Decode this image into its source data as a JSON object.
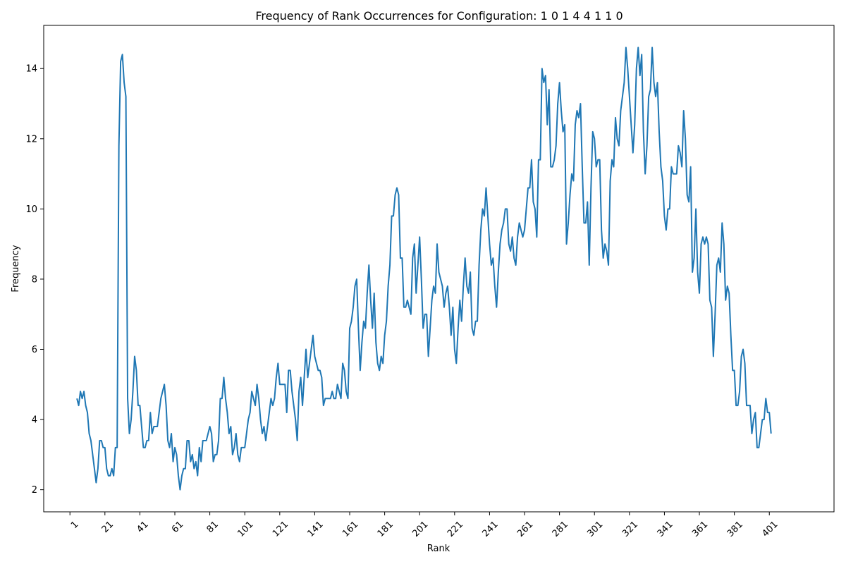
{
  "chart_data": {
    "type": "line",
    "title": "Frequency of Rank Occurrences for Configuration: 1 0 1 4 4 1 1 0",
    "xlabel": "Rank",
    "ylabel": "Frequency",
    "xlim": [
      -14,
      438
    ],
    "ylim": [
      1.37,
      15.23
    ],
    "x_ticks": [
      1,
      21,
      41,
      61,
      81,
      101,
      121,
      141,
      161,
      181,
      201,
      221,
      241,
      261,
      281,
      301,
      321,
      341,
      361,
      381,
      401
    ],
    "y_ticks": [
      2,
      4,
      6,
      8,
      10,
      12,
      14
    ],
    "grid": false,
    "legend": false,
    "color": "#1f77b4",
    "series": [
      {
        "x_start": 5,
        "values": [
          4.6,
          4.4,
          4.8,
          4.6,
          4.8,
          4.4,
          4.2,
          3.6,
          3.4,
          3.0,
          2.6,
          2.2,
          2.6,
          3.4,
          3.4,
          3.2,
          3.2,
          2.6,
          2.4,
          2.4,
          2.6,
          2.4,
          3.2,
          3.2,
          11.8,
          14.2,
          14.4,
          13.6,
          13.2,
          4.6,
          3.6,
          4.0,
          4.8,
          5.8,
          5.4,
          4.4,
          4.4,
          3.8,
          3.2,
          3.2,
          3.4,
          3.4,
          4.2,
          3.6,
          3.8,
          3.8,
          3.8,
          4.2,
          4.6,
          4.8,
          5.0,
          4.4,
          3.4,
          3.2,
          3.6,
          2.8,
          3.2,
          3.0,
          2.4,
          2.0,
          2.4,
          2.6,
          2.6,
          3.4,
          3.4,
          2.8,
          3.0,
          2.6,
          2.8,
          2.4,
          3.2,
          2.8,
          3.4,
          3.4,
          3.4,
          3.6,
          3.8,
          3.6,
          2.8,
          3.0,
          3.0,
          3.4,
          4.6,
          4.6,
          5.2,
          4.6,
          4.2,
          3.6,
          3.8,
          3.0,
          3.2,
          3.6,
          3.0,
          2.8,
          3.2,
          3.2,
          3.2,
          3.6,
          4.0,
          4.2,
          4.8,
          4.6,
          4.4,
          5.0,
          4.6,
          4.0,
          3.6,
          3.8,
          3.4,
          3.8,
          4.2,
          4.6,
          4.4,
          4.6,
          5.2,
          5.6,
          5.0,
          5.0,
          5.0,
          5.0,
          4.2,
          5.4,
          5.4,
          4.8,
          4.4,
          4.0,
          3.4,
          4.8,
          5.2,
          4.4,
          5.2,
          6.0,
          5.2,
          5.6,
          6.0,
          6.4,
          5.8,
          5.6,
          5.4,
          5.4,
          5.2,
          4.4,
          4.6,
          4.6,
          4.6,
          4.6,
          4.8,
          4.6,
          4.6,
          5.0,
          4.8,
          4.6,
          5.6,
          5.4,
          4.8,
          4.6,
          6.6,
          6.8,
          7.2,
          7.8,
          8.0,
          6.6,
          5.4,
          6.2,
          6.8,
          6.6,
          7.6,
          8.4,
          7.4,
          6.6,
          7.6,
          6.2,
          5.6,
          5.4,
          5.8,
          5.6,
          6.4,
          6.8,
          7.8,
          8.4,
          9.8,
          9.8,
          10.4,
          10.6,
          10.4,
          8.6,
          8.6,
          7.2,
          7.2,
          7.4,
          7.2,
          7.0,
          8.6,
          9.0,
          7.6,
          8.4,
          9.2,
          8.0,
          6.6,
          7.0,
          7.0,
          5.8,
          6.6,
          7.4,
          7.8,
          7.6,
          9.0,
          8.2,
          8.0,
          7.8,
          7.2,
          7.6,
          7.8,
          7.2,
          6.4,
          7.2,
          6.0,
          5.6,
          6.6,
          7.4,
          6.8,
          7.8,
          8.6,
          7.8,
          7.6,
          8.2,
          6.6,
          6.4,
          6.8,
          6.8,
          8.4,
          9.4,
          10.0,
          9.8,
          10.6,
          9.8,
          9.0,
          8.4,
          8.6,
          7.8,
          7.2,
          8.2,
          9.0,
          9.4,
          9.6,
          10.0,
          10.0,
          9.0,
          8.8,
          9.2,
          8.6,
          8.4,
          9.2,
          9.6,
          9.4,
          9.2,
          9.4,
          10.0,
          10.6,
          10.6,
          11.4,
          10.2,
          10.0,
          9.2,
          11.4,
          11.4,
          14.0,
          13.6,
          13.8,
          12.4,
          13.4,
          11.2,
          11.2,
          11.4,
          11.8,
          13.0,
          13.6,
          12.8,
          12.2,
          12.4,
          9.0,
          9.6,
          10.4,
          11.0,
          10.8,
          12.4,
          12.8,
          12.6,
          13.0,
          11.2,
          9.6,
          9.6,
          10.2,
          8.4,
          10.6,
          12.2,
          12.0,
          11.2,
          11.4,
          11.4,
          9.4,
          8.6,
          9.0,
          8.8,
          8.4,
          10.8,
          11.4,
          11.2,
          12.6,
          12.0,
          11.8,
          12.8,
          13.2,
          13.6,
          14.6,
          14.0,
          13.2,
          12.4,
          11.6,
          12.4,
          14.0,
          14.6,
          13.8,
          14.4,
          12.2,
          11.0,
          11.8,
          13.2,
          13.4,
          14.6,
          13.6,
          13.2,
          13.6,
          12.2,
          11.2,
          10.8,
          9.8,
          9.4,
          10.0,
          10.0,
          11.2,
          11.0,
          11.0,
          11.0,
          11.8,
          11.6,
          11.2,
          12.8,
          12.0,
          10.4,
          10.2,
          11.2,
          8.2,
          8.6,
          10.0,
          8.2,
          7.6,
          9.0,
          9.2,
          9.0,
          9.2,
          9.0,
          7.4,
          7.2,
          5.8,
          7.0,
          8.4,
          8.6,
          8.2,
          9.6,
          9.0,
          7.4,
          7.8,
          7.6,
          6.4,
          5.4,
          5.4,
          4.4,
          4.4,
          4.8,
          5.8,
          6.0,
          5.6,
          4.4,
          4.4,
          4.4,
          3.6,
          4.0,
          4.2,
          3.2,
          3.2,
          3.6,
          4.0,
          4.0,
          4.6,
          4.2,
          4.2,
          3.6
        ]
      }
    ]
  }
}
